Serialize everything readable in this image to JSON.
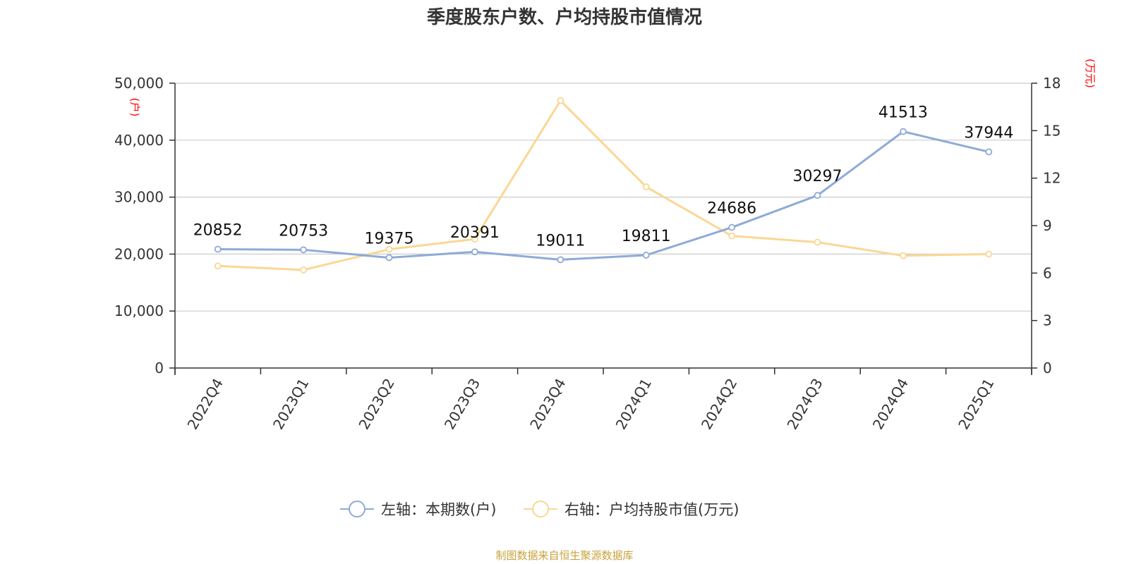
{
  "chart_data": {
    "type": "line",
    "title": "季度股东户数、户均持股市值情况",
    "categories": [
      "2022Q4",
      "2023Q1",
      "2023Q2",
      "2023Q3",
      "2023Q4",
      "2024Q1",
      "2024Q2",
      "2024Q3",
      "2024Q4",
      "2025Q1"
    ],
    "series": [
      {
        "name": "左轴：本期数(户)",
        "axis": "left",
        "color": "#8eaad8",
        "values": [
          20852,
          20753,
          19375,
          20391,
          19011,
          19811,
          24686,
          30297,
          41513,
          37944
        ],
        "labels": [
          "20852",
          "20753",
          "19375",
          "20391",
          "19011",
          "19811",
          "24686",
          "30297",
          "41513",
          "37944"
        ]
      },
      {
        "name": "右轴：户均持股市值(万元)",
        "axis": "right",
        "color": "#fad794",
        "values": [
          6.45,
          6.2,
          7.5,
          8.15,
          16.9,
          11.45,
          8.35,
          7.95,
          7.1,
          7.2
        ]
      }
    ],
    "left_axis": {
      "unit": "(户)",
      "ylim": [
        0,
        50000
      ],
      "ticks": [
        0,
        10000,
        20000,
        30000,
        40000,
        50000
      ],
      "tick_labels": [
        "0",
        "10,000",
        "20,000",
        "30,000",
        "40,000",
        "50,000"
      ]
    },
    "right_axis": {
      "unit": "(万元)",
      "ylim": [
        0,
        18
      ],
      "ticks": [
        0,
        3,
        6,
        9,
        12,
        15,
        18
      ],
      "tick_labels": [
        "0",
        "3",
        "6",
        "9",
        "12",
        "15",
        "18"
      ]
    },
    "grid": true,
    "legend": "bottom"
  },
  "source": "制图数据来自恒生聚源数据库"
}
